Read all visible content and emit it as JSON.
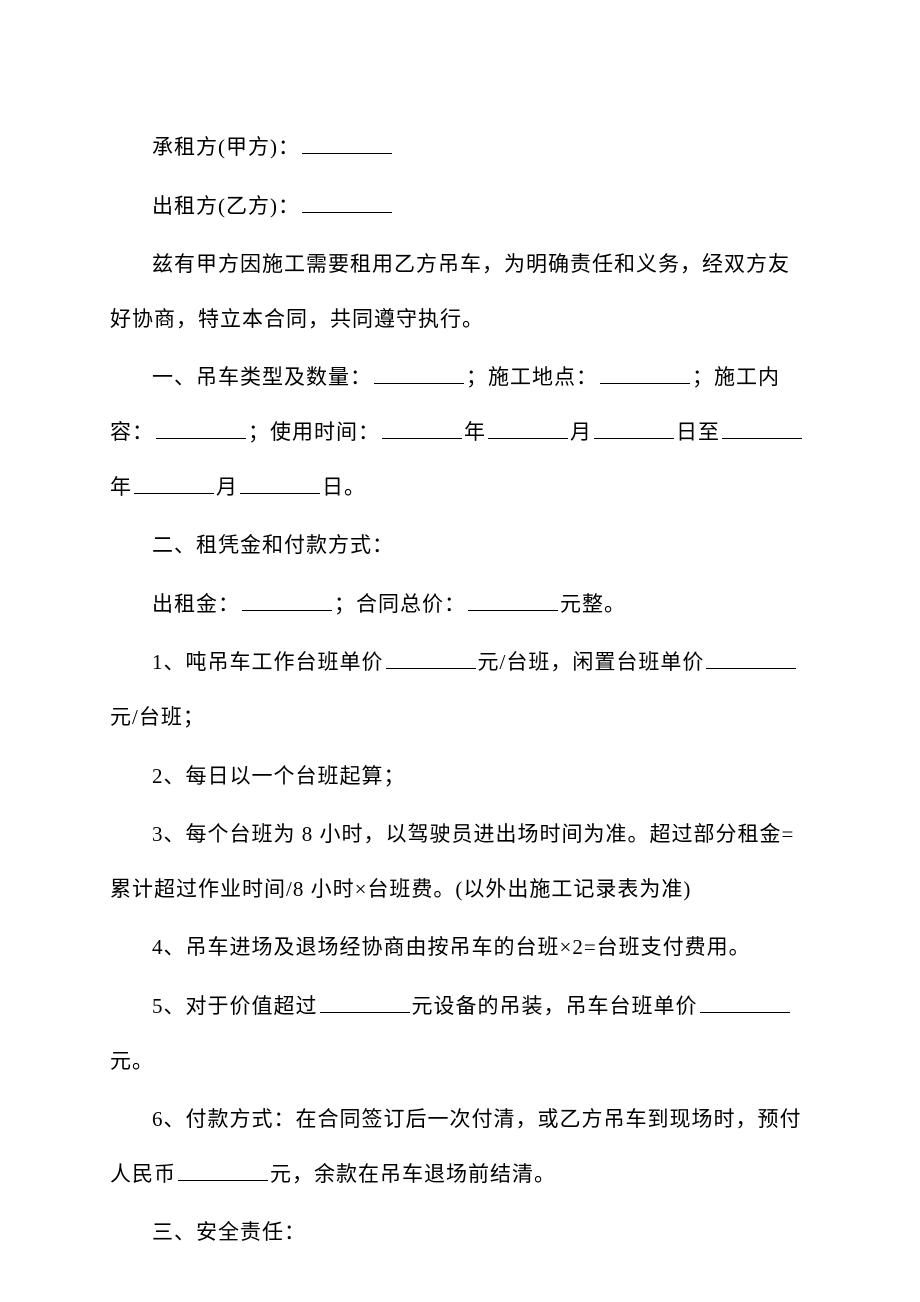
{
  "party_a_label": "承租方(甲方)：",
  "party_b_label": "出租方(乙方)：",
  "preamble": "兹有甲方因施工需要租用乙方吊车，为明确责任和义务，经双方友好协商，特立本合同，共同遵守执行。",
  "section1": {
    "prefix": "一、吊车类型及数量：",
    "loc_label": "；施工地点：",
    "content_label": "；施工内容：",
    "time_label": "；使用时间：",
    "year": "年",
    "month": "月",
    "day": "日",
    "to": "至",
    "end": "日。"
  },
  "section2": {
    "title": "二、租凭金和付款方式：",
    "rent_label": "出租金：",
    "total_label": "；合同总价：",
    "yuan_suffix": "元整。",
    "item1_a": "1、吨吊车工作台班单价",
    "item1_b": "元/台班，闲置台班单价",
    "item1_c": "元/台班；",
    "item2": "2、每日以一个台班起算；",
    "item3": "3、每个台班为 8 小时，以驾驶员进出场时间为准。超过部分租金=累计超过作业时间/8 小时×台班费。(以外出施工记录表为准)",
    "item4": "4、吊车进场及退场经协商由按吊车的台班×2=台班支付费用。",
    "item5_a": "5、对于价值超过",
    "item5_b": "元设备的吊装，吊车台班单价",
    "item5_c": "元。",
    "item6_a": "6、付款方式：在合同签订后一次付清，或乙方吊车到现场时，预付人民币",
    "item6_b": "元，余款在吊车退场前结清。"
  },
  "section3_title": "三、安全责任："
}
